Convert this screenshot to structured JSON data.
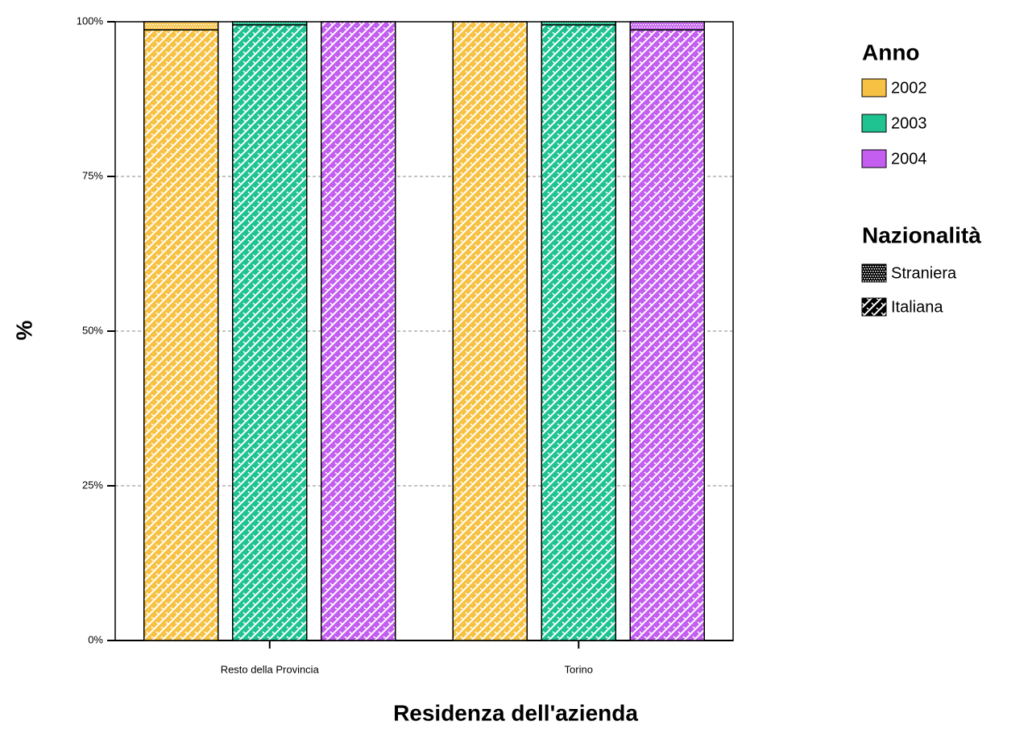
{
  "chart_data": {
    "type": "grouped-stacked-bar",
    "x_label": "Residenza dell'azienda",
    "y_label": "%",
    "categories": [
      "Resto della Provincia",
      "Torino"
    ],
    "series_legend_title": "Anno",
    "stack_legend_title": "Nazionalità",
    "stacks": [
      {
        "name": "Straniera",
        "pattern": "dots"
      },
      {
        "name": "Italiana",
        "pattern": "weave"
      }
    ],
    "series": [
      {
        "name": "2002",
        "color": "#f7c243",
        "values": [
          [
            1.3,
            98.7
          ],
          [
            0,
            100
          ]
        ]
      },
      {
        "name": "2003",
        "color": "#1fc391",
        "values": [
          [
            0.5,
            99.5
          ],
          [
            0.5,
            99.5
          ]
        ]
      },
      {
        "name": "2004",
        "color": "#c35ef0",
        "values": [
          [
            0,
            100
          ],
          [
            1.3,
            98.7
          ]
        ]
      }
    ],
    "ylim": [
      0,
      100
    ],
    "yticks": [
      {
        "value": 0,
        "label": "0%"
      },
      {
        "value": 25,
        "label": "25%"
      },
      {
        "value": 50,
        "label": "50%"
      },
      {
        "value": 75,
        "label": "75%"
      },
      {
        "value": 100,
        "label": "100%"
      }
    ],
    "grid": true
  }
}
